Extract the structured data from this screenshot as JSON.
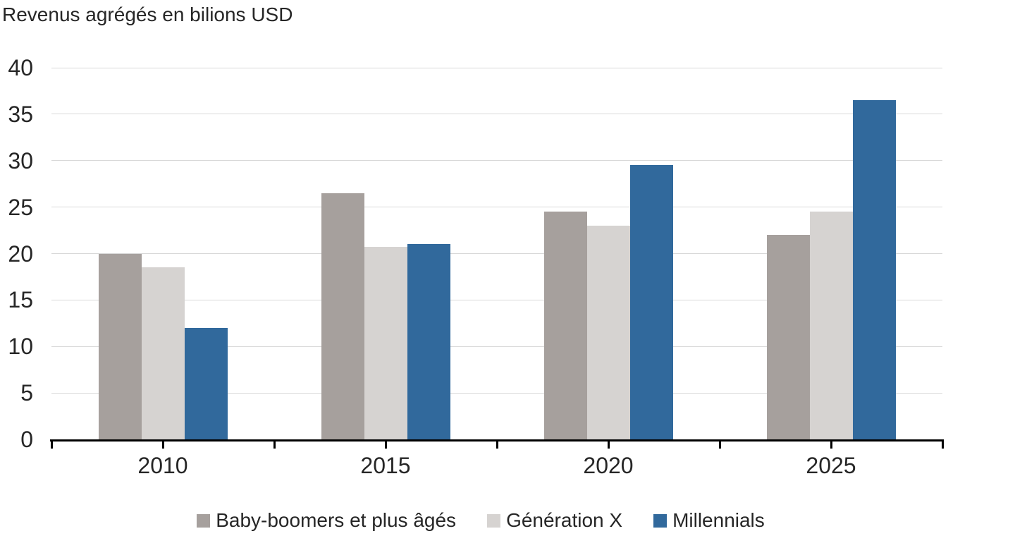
{
  "chart_data": {
    "type": "bar",
    "title": "Revenus agrégés en bilions USD",
    "categories": [
      "2010",
      "2015",
      "2020",
      "2025"
    ],
    "series": [
      {
        "name": "Baby-boomers et plus âgés",
        "color": "#a6a09d",
        "values": [
          20,
          26.5,
          24.5,
          22
        ]
      },
      {
        "name": "Génération X",
        "color": "#d6d3d1",
        "values": [
          18.5,
          20.7,
          23,
          24.5
        ]
      },
      {
        "name": "Millennials",
        "color": "#31699c",
        "values": [
          12,
          21,
          29.5,
          36.5
        ]
      }
    ],
    "ylim": [
      0,
      40
    ],
    "yticks": [
      0,
      5,
      10,
      15,
      20,
      25,
      30,
      35,
      40
    ],
    "xlabel": "",
    "ylabel": "",
    "grid": "horizontal",
    "legend_position": "bottom",
    "colors": {
      "gridline": "#d9d9d9",
      "axis": "#000000",
      "text": "#262626"
    }
  }
}
